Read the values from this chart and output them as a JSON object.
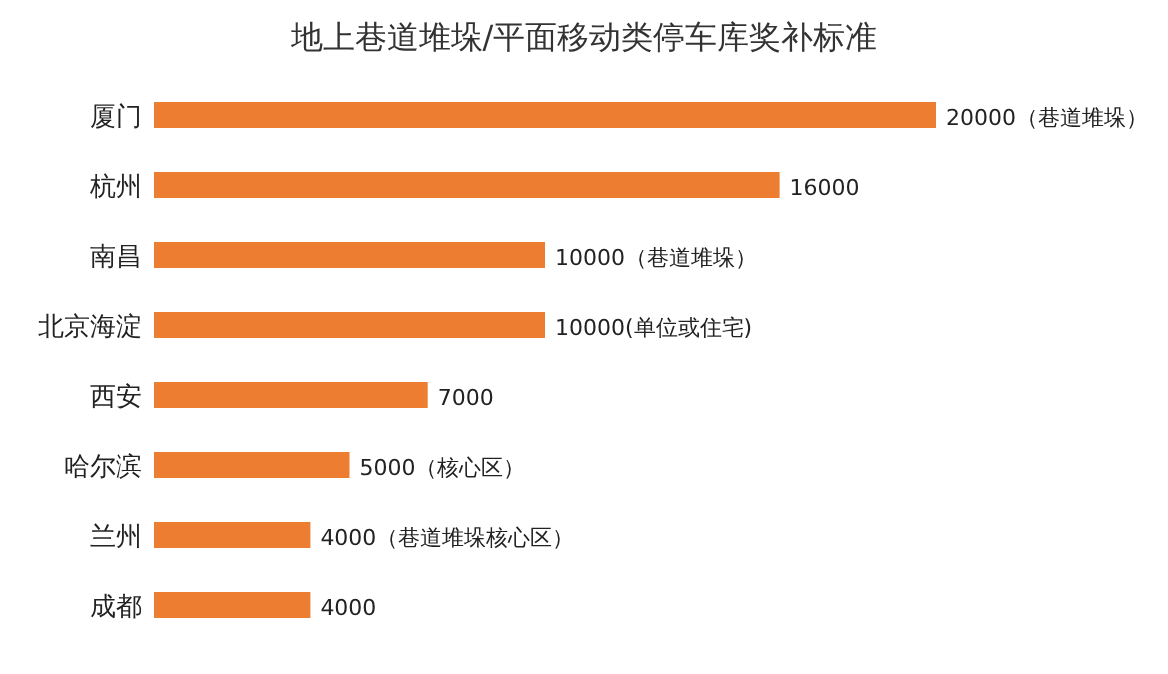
{
  "chart_data": {
    "type": "bar",
    "orientation": "horizontal",
    "title": "地上巷道堆垛/平面移动类停车库奖补标准",
    "categories": [
      "厦门",
      "杭州",
      "南昌",
      "北京海淀",
      "西安",
      "哈尔滨",
      "兰州",
      "成都"
    ],
    "values": [
      20000,
      16000,
      10000,
      10000,
      7000,
      5000,
      4000,
      4000
    ],
    "value_labels": [
      "20000（巷道堆垛）",
      "16000",
      "10000（巷道堆垛）",
      "10000(单位或住宅)",
      "7000",
      "5000（核心区）",
      "4000（巷道堆垛核心区）",
      "4000"
    ],
    "color": "#ed7d31",
    "xlim": [
      0,
      20000
    ]
  }
}
